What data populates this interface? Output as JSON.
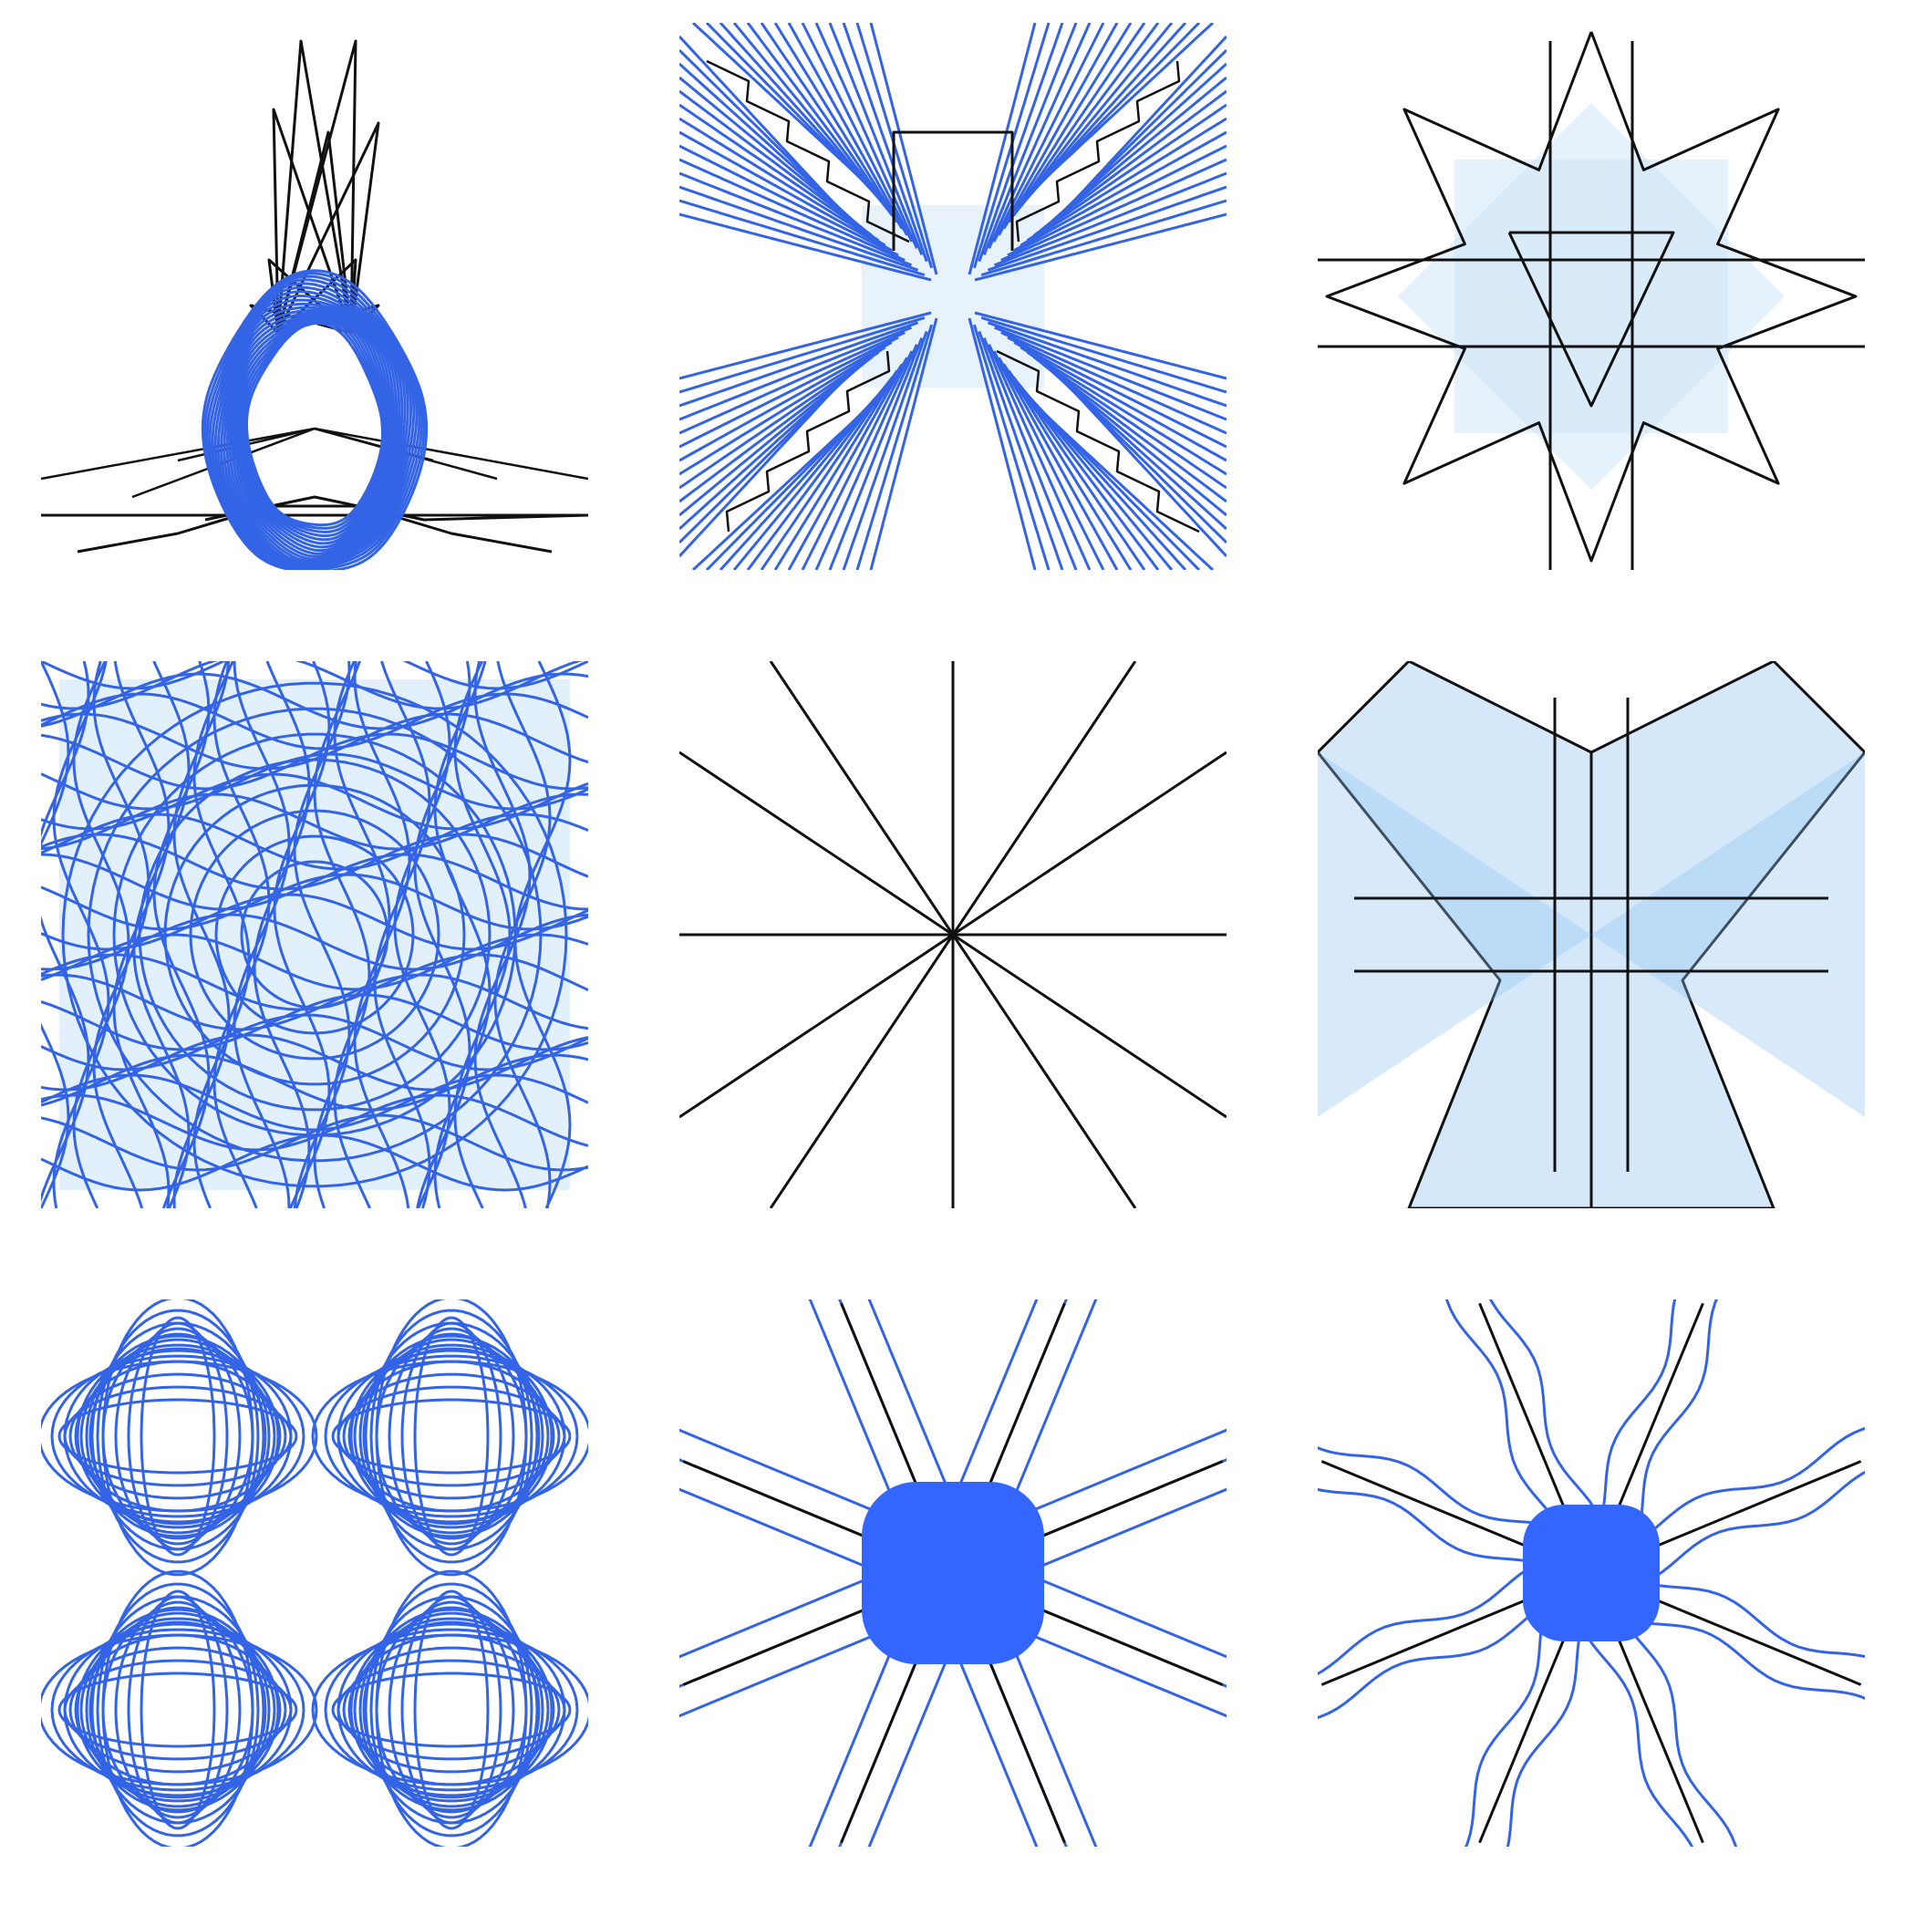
{
  "figure": {
    "stroke_blue": "#3464e6",
    "stroke_black": "#111111",
    "fill_light_blue": "#cfe6f8",
    "fill_mid_blue": "#90c4f0",
    "fill_solid_blue": "#3366ff",
    "panels": [
      {
        "id": "r1c1",
        "description_tag": "egg-ring-with-black-spikes"
      },
      {
        "id": "r1c2",
        "description_tag": "x-shaped-blue-lattice"
      },
      {
        "id": "r1c3",
        "description_tag": "black-star-outline"
      },
      {
        "id": "r2c1",
        "description_tag": "dense-blue-square-weave"
      },
      {
        "id": "r2c2",
        "description_tag": "twelve-ray-starburst"
      },
      {
        "id": "r2c3",
        "description_tag": "blue-bowtie-shapes"
      },
      {
        "id": "r3c1",
        "description_tag": "four-corner-loops"
      },
      {
        "id": "r3c2",
        "description_tag": "blue-core-eight-arms"
      },
      {
        "id": "r3c3",
        "description_tag": "blue-core-wavy-arms"
      }
    ]
  }
}
